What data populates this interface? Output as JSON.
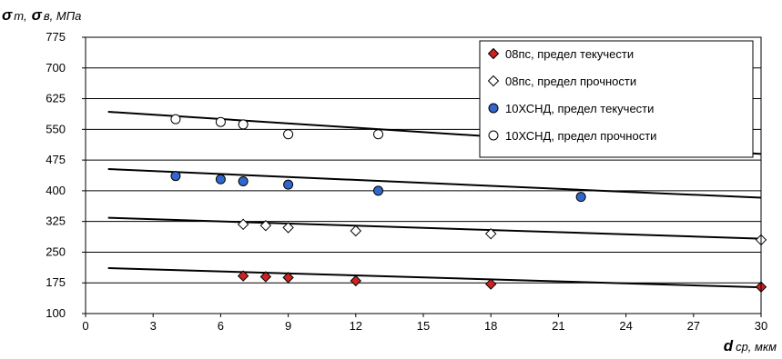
{
  "chart_data": {
    "type": "scatter",
    "ylabel_parts": [
      {
        "sym": "σ",
        "sub": "т,"
      },
      {
        "sym": "σ",
        "sub": "в, МПа"
      }
    ],
    "xlabel_parts": {
      "sym": "d",
      "sub": "ср, мкм"
    },
    "xlim": [
      0,
      30
    ],
    "ylim": [
      100,
      775
    ],
    "x_ticks": [
      0,
      3,
      6,
      9,
      12,
      15,
      18,
      21,
      24,
      27,
      30
    ],
    "y_ticks": [
      100,
      175,
      250,
      325,
      400,
      475,
      550,
      625,
      700,
      775
    ],
    "grid": "horizontal",
    "legend_position": "top-right",
    "series": [
      {
        "name": "08пс, предел текучести",
        "marker": "diamond",
        "color": "#cc2222",
        "points": [
          [
            7,
            192
          ],
          [
            8,
            190
          ],
          [
            9,
            188
          ],
          [
            12,
            180
          ],
          [
            18,
            172
          ],
          [
            30,
            165
          ]
        ],
        "trend": [
          [
            1,
            211
          ],
          [
            30,
            164
          ]
        ]
      },
      {
        "name": "08пс, предел прочности",
        "marker": "diamond",
        "color": "#ffffff",
        "points": [
          [
            7,
            318
          ],
          [
            8,
            315
          ],
          [
            9,
            310
          ],
          [
            12,
            302
          ],
          [
            18,
            295
          ],
          [
            30,
            280
          ]
        ],
        "trend": [
          [
            1,
            334
          ],
          [
            30,
            283
          ]
        ]
      },
      {
        "name": "10ХСНД, предел текучести",
        "marker": "circle",
        "color": "#3366cc",
        "points": [
          [
            4,
            436
          ],
          [
            6,
            428
          ],
          [
            7,
            423
          ],
          [
            9,
            415
          ],
          [
            13,
            400
          ],
          [
            22,
            385
          ]
        ],
        "trend": [
          [
            1,
            453
          ],
          [
            30,
            383
          ]
        ]
      },
      {
        "name": "10ХСНД, предел прочности",
        "marker": "circle",
        "color": "#ffffff",
        "points": [
          [
            4,
            575
          ],
          [
            6,
            568
          ],
          [
            7,
            562
          ],
          [
            9,
            538
          ],
          [
            13,
            538
          ],
          [
            22,
            503
          ]
        ],
        "trend": [
          [
            1,
            593
          ],
          [
            30,
            490
          ]
        ]
      }
    ]
  }
}
